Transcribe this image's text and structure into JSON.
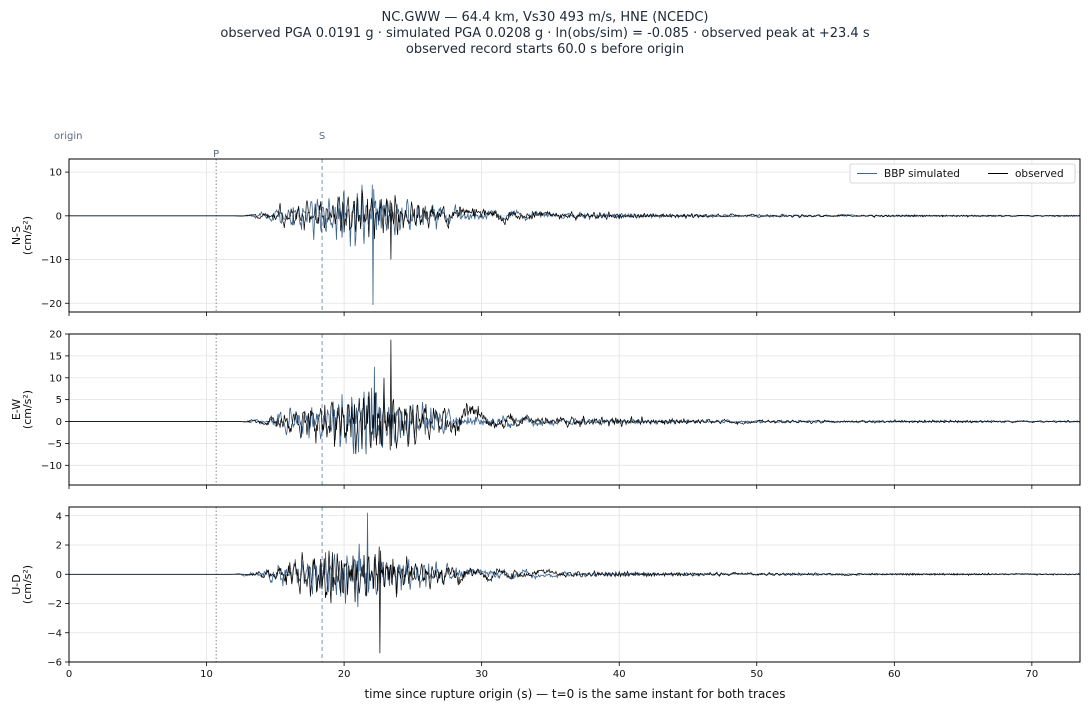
{
  "title": {
    "line1": "NC.GWW  —  64.4 km, Vs30 493 m/s, HNE (NCEDC)",
    "line2": "observed PGA 0.0191 g   ·   simulated PGA 0.0208 g   ·   ln(obs/sim) = -0.085   ·   observed peak at +23.4 s",
    "line3": "observed record starts 60.0 s before origin"
  },
  "chart_data": {
    "type": "line",
    "xlabel": "time since rupture origin (s)   —   t=0 is the same instant for both traces",
    "xlim": [
      0,
      73.5
    ],
    "xticks": [
      0,
      10,
      20,
      30,
      40,
      50,
      60,
      70
    ],
    "markers": [
      {
        "label": "origin",
        "t": 0,
        "style": "none"
      },
      {
        "label": "P",
        "t": 10.7,
        "style": "dotted"
      },
      {
        "label": "S",
        "t": 18.4,
        "style": "dashed"
      }
    ],
    "legend": {
      "placement": "top-right",
      "entries": [
        {
          "name": "BBP simulated",
          "color": "#3e6690"
        },
        {
          "name": "observed",
          "color": "#000000"
        }
      ]
    },
    "grid": true,
    "panels": [
      {
        "ylabel": "N-S\n(cm/s²)",
        "ylim": [
          -22,
          13
        ],
        "yticks": [
          10,
          0,
          -10,
          -20
        ],
        "observed_peak": {
          "t": 23.4,
          "value": -10
        },
        "simulated_peak": {
          "t": 22.1,
          "value": -20.4
        }
      },
      {
        "ylabel": "E-W\n(cm/s²)",
        "ylim": [
          -14.5,
          20
        ],
        "yticks": [
          20,
          15,
          10,
          5,
          0,
          -5,
          -10
        ],
        "observed_peak": {
          "t": 23.4,
          "value": 18.7
        },
        "simulated_peak": {
          "t": 22.2,
          "value": 12.5
        }
      },
      {
        "ylabel": "U-D\n(cm/s²)",
        "ylim": [
          -6,
          4.6
        ],
        "yticks": [
          4,
          2,
          0,
          -2,
          -4,
          -6
        ],
        "observed_peak": {
          "t": 22.6,
          "value": -5.4
        },
        "simulated_peak": {
          "t": 21.7,
          "value": 4.2
        }
      }
    ]
  }
}
